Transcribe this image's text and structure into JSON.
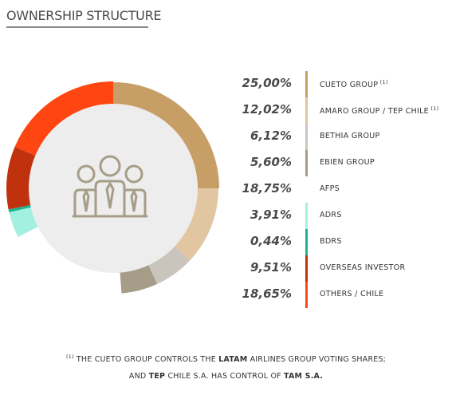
{
  "title": "OWNERSHIP STRUCTURE",
  "chart_data": {
    "type": "pie",
    "variant": "donut",
    "legend_placement": "right",
    "slices": [
      {
        "value": 25.0,
        "value_label": "25,00%",
        "label": "CUETO GROUP",
        "note_marker": "(1)",
        "color": "#c89e67"
      },
      {
        "value": 12.02,
        "value_label": "12,02%",
        "label": "AMARO GROUP / TEP CHILE",
        "note_marker": "(1)",
        "color": "#e1c6a1"
      },
      {
        "value": 6.12,
        "value_label": "6,12%",
        "label": "BETHIA GROUP",
        "note_marker": "",
        "color": "#cac5bc"
      },
      {
        "value": 5.6,
        "value_label": "5,60%",
        "label": "EBIEN GROUP",
        "note_marker": "",
        "color": "#a69d88"
      },
      {
        "value": 18.75,
        "value_label": "18,75%",
        "label": "AFPS",
        "note_marker": "",
        "color": "#ffffff"
      },
      {
        "value": 3.91,
        "value_label": "3,91%",
        "label": "ADRS",
        "note_marker": "",
        "color": "#a3f0e0"
      },
      {
        "value": 0.44,
        "value_label": "0,44%",
        "label": "BDRS",
        "note_marker": "",
        "color": "#1bb391"
      },
      {
        "value": 9.51,
        "value_label": "9,51%",
        "label": "OVERSEAS INVESTOR",
        "note_marker": "",
        "color": "#c0310e"
      },
      {
        "value": 18.65,
        "value_label": "18,65%",
        "label": "OTHERS / CHILE",
        "note_marker": "",
        "color": "#ff4612"
      }
    ]
  },
  "center_icon": "people-group-icon",
  "inner_circle_color": "#ededed",
  "footnote": {
    "marker": "(1)",
    "line1_a": " THE CUETO GROUP CONTROLS THE ",
    "line1_b": "LATAM",
    "line1_c": " AIRLINES GROUP VOTING SHARES;",
    "line2_a": "AND ",
    "line2_b": "TEP",
    "line2_c": " CHILE S.A. HAS CONTROL OF ",
    "line2_d": "TAM S.A."
  }
}
